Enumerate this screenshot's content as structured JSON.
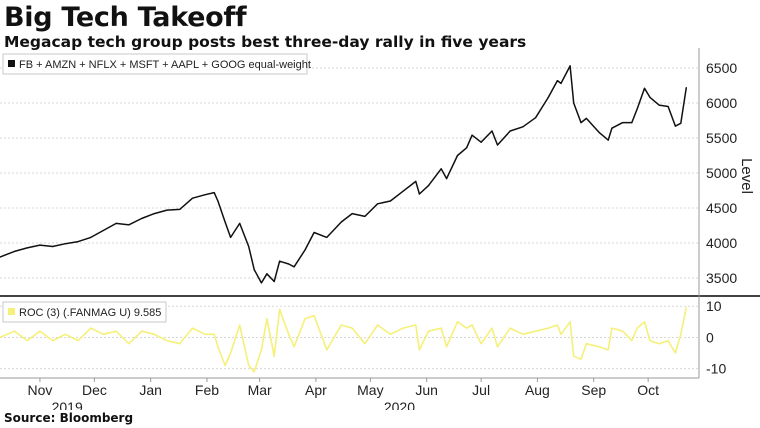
{
  "header": {
    "title": "Big Tech Takeoff",
    "subtitle": "Megacap tech group posts best three-day rally in five years"
  },
  "footer": {
    "source": "Source: Bloomberg"
  },
  "colors": {
    "main_line": "#111111",
    "roc_line": "#f5f07a",
    "grid": "#d7d7d7",
    "divider": "#444444"
  },
  "chart_data": [
    {
      "type": "line",
      "series": [
        {
          "name": "FB + AMZN + NFLX + MSFT + AAPL + GOOG equal-weight",
          "color": "#111111",
          "points": [
            [
              "2019-10-24",
              3800
            ],
            [
              "2019-11-01",
              3880
            ],
            [
              "2019-11-08",
              3930
            ],
            [
              "2019-11-15",
              3970
            ],
            [
              "2019-11-22",
              3950
            ],
            [
              "2019-11-29",
              3990
            ],
            [
              "2019-12-06",
              4020
            ],
            [
              "2019-12-13",
              4080
            ],
            [
              "2019-12-20",
              4180
            ],
            [
              "2019-12-27",
              4280
            ],
            [
              "2020-01-03",
              4260
            ],
            [
              "2020-01-10",
              4350
            ],
            [
              "2020-01-17",
              4420
            ],
            [
              "2020-01-24",
              4470
            ],
            [
              "2020-01-31",
              4480
            ],
            [
              "2020-02-07",
              4640
            ],
            [
              "2020-02-14",
              4690
            ],
            [
              "2020-02-19",
              4720
            ],
            [
              "2020-02-21",
              4600
            ],
            [
              "2020-02-25",
              4300
            ],
            [
              "2020-02-28",
              4080
            ],
            [
              "2020-03-04",
              4280
            ],
            [
              "2020-03-09",
              3950
            ],
            [
              "2020-03-12",
              3620
            ],
            [
              "2020-03-16",
              3430
            ],
            [
              "2020-03-19",
              3560
            ],
            [
              "2020-03-23",
              3450
            ],
            [
              "2020-03-26",
              3740
            ],
            [
              "2020-03-31",
              3700
            ],
            [
              "2020-04-03",
              3660
            ],
            [
              "2020-04-09",
              3900
            ],
            [
              "2020-04-14",
              4150
            ],
            [
              "2020-04-21",
              4080
            ],
            [
              "2020-04-29",
              4300
            ],
            [
              "2020-05-05",
              4420
            ],
            [
              "2020-05-12",
              4380
            ],
            [
              "2020-05-19",
              4560
            ],
            [
              "2020-05-26",
              4600
            ],
            [
              "2020-06-02",
              4740
            ],
            [
              "2020-06-09",
              4880
            ],
            [
              "2020-06-11",
              4700
            ],
            [
              "2020-06-16",
              4820
            ],
            [
              "2020-06-23",
              5060
            ],
            [
              "2020-06-26",
              4920
            ],
            [
              "2020-07-02",
              5250
            ],
            [
              "2020-07-07",
              5360
            ],
            [
              "2020-07-10",
              5540
            ],
            [
              "2020-07-15",
              5440
            ],
            [
              "2020-07-21",
              5600
            ],
            [
              "2020-07-24",
              5400
            ],
            [
              "2020-07-31",
              5600
            ],
            [
              "2020-08-07",
              5660
            ],
            [
              "2020-08-14",
              5790
            ],
            [
              "2020-08-21",
              6080
            ],
            [
              "2020-08-26",
              6320
            ],
            [
              "2020-08-28",
              6280
            ],
            [
              "2020-09-02",
              6530
            ],
            [
              "2020-09-04",
              6000
            ],
            [
              "2020-09-08",
              5720
            ],
            [
              "2020-09-11",
              5780
            ],
            [
              "2020-09-18",
              5580
            ],
            [
              "2020-09-23",
              5470
            ],
            [
              "2020-09-25",
              5640
            ],
            [
              "2020-10-01",
              5720
            ],
            [
              "2020-10-06",
              5720
            ],
            [
              "2020-10-09",
              5920
            ],
            [
              "2020-10-13",
              6210
            ],
            [
              "2020-10-16",
              6080
            ],
            [
              "2020-10-21",
              5970
            ],
            [
              "2020-10-26",
              5950
            ],
            [
              "2020-10-30",
              5670
            ],
            [
              "2020-11-02",
              5710
            ],
            [
              "2020-11-05",
              6220
            ]
          ]
        }
      ],
      "ylabel": "Level",
      "ylim": [
        3300,
        6700
      ],
      "yticks": [
        3500,
        4000,
        4500,
        5000,
        5500,
        6000,
        6500
      ],
      "grid": true,
      "legend_position": "top-left"
    },
    {
      "type": "line",
      "series": [
        {
          "name": "ROC (3) (.FANMAG U) 9.585",
          "color": "#f5f07a",
          "points": [
            [
              "2019-10-24",
              0
            ],
            [
              "2019-11-01",
              2
            ],
            [
              "2019-11-08",
              -1
            ],
            [
              "2019-11-15",
              2
            ],
            [
              "2019-11-22",
              -1
            ],
            [
              "2019-11-29",
              1
            ],
            [
              "2019-12-06",
              -1
            ],
            [
              "2019-12-13",
              3
            ],
            [
              "2019-12-20",
              1
            ],
            [
              "2019-12-27",
              2
            ],
            [
              "2020-01-03",
              -2
            ],
            [
              "2020-01-10",
              2
            ],
            [
              "2020-01-17",
              1
            ],
            [
              "2020-01-24",
              -1
            ],
            [
              "2020-01-31",
              -2
            ],
            [
              "2020-02-07",
              3
            ],
            [
              "2020-02-14",
              1
            ],
            [
              "2020-02-19",
              1
            ],
            [
              "2020-02-21",
              -3
            ],
            [
              "2020-02-25",
              -9
            ],
            [
              "2020-02-28",
              -5
            ],
            [
              "2020-03-04",
              4
            ],
            [
              "2020-03-09",
              -9
            ],
            [
              "2020-03-12",
              -11
            ],
            [
              "2020-03-16",
              -4
            ],
            [
              "2020-03-19",
              6
            ],
            [
              "2020-03-23",
              -6
            ],
            [
              "2020-03-26",
              9
            ],
            [
              "2020-03-31",
              1
            ],
            [
              "2020-04-03",
              -3
            ],
            [
              "2020-04-09",
              6
            ],
            [
              "2020-04-14",
              7
            ],
            [
              "2020-04-21",
              -4
            ],
            [
              "2020-04-29",
              4
            ],
            [
              "2020-05-05",
              3
            ],
            [
              "2020-05-12",
              -2
            ],
            [
              "2020-05-19",
              4
            ],
            [
              "2020-05-26",
              1
            ],
            [
              "2020-06-02",
              3
            ],
            [
              "2020-06-09",
              4
            ],
            [
              "2020-06-11",
              -4
            ],
            [
              "2020-06-16",
              2
            ],
            [
              "2020-06-23",
              3
            ],
            [
              "2020-06-26",
              -3
            ],
            [
              "2020-07-02",
              5
            ],
            [
              "2020-07-07",
              3
            ],
            [
              "2020-07-10",
              4
            ],
            [
              "2020-07-15",
              -2
            ],
            [
              "2020-07-21",
              3
            ],
            [
              "2020-07-24",
              -3
            ],
            [
              "2020-07-31",
              3
            ],
            [
              "2020-08-07",
              1
            ],
            [
              "2020-08-14",
              2
            ],
            [
              "2020-08-21",
              3
            ],
            [
              "2020-08-26",
              4
            ],
            [
              "2020-08-28",
              1
            ],
            [
              "2020-09-02",
              5
            ],
            [
              "2020-09-04",
              -6
            ],
            [
              "2020-09-08",
              -7
            ],
            [
              "2020-09-11",
              -2
            ],
            [
              "2020-09-18",
              -3
            ],
            [
              "2020-09-23",
              -4
            ],
            [
              "2020-09-25",
              3
            ],
            [
              "2020-10-01",
              2
            ],
            [
              "2020-10-06",
              -1
            ],
            [
              "2020-10-09",
              3
            ],
            [
              "2020-10-13",
              5
            ],
            [
              "2020-10-16",
              -1
            ],
            [
              "2020-10-21",
              -2
            ],
            [
              "2020-10-26",
              -1
            ],
            [
              "2020-10-30",
              -5
            ],
            [
              "2020-11-02",
              1
            ],
            [
              "2020-11-05",
              9.585
            ]
          ]
        }
      ],
      "ylim": [
        -13,
        12
      ],
      "yticks": [
        -10,
        0,
        10
      ],
      "grid": true,
      "legend_position": "top-left"
    }
  ],
  "x_axis": {
    "months": [
      {
        "label": "Nov",
        "date": "2019-11-15"
      },
      {
        "label": "Dec",
        "date": "2019-12-15"
      },
      {
        "label": "Jan",
        "date": "2020-01-15"
      },
      {
        "label": "Feb",
        "date": "2020-02-15"
      },
      {
        "label": "Mar",
        "date": "2020-03-15"
      },
      {
        "label": "Apr",
        "date": "2020-04-15"
      },
      {
        "label": "May",
        "date": "2020-05-15"
      },
      {
        "label": "Jun",
        "date": "2020-06-15"
      },
      {
        "label": "Jul",
        "date": "2020-07-15"
      },
      {
        "label": "Aug",
        "date": "2020-08-15"
      },
      {
        "label": "Sep",
        "date": "2020-09-15"
      },
      {
        "label": "Oct",
        "date": "2020-10-15"
      }
    ],
    "years": [
      {
        "label": "2019",
        "date": "2019-11-30"
      },
      {
        "label": "2020",
        "date": "2020-05-31"
      }
    ],
    "range": [
      "2019-10-24",
      "2020-11-12"
    ]
  }
}
